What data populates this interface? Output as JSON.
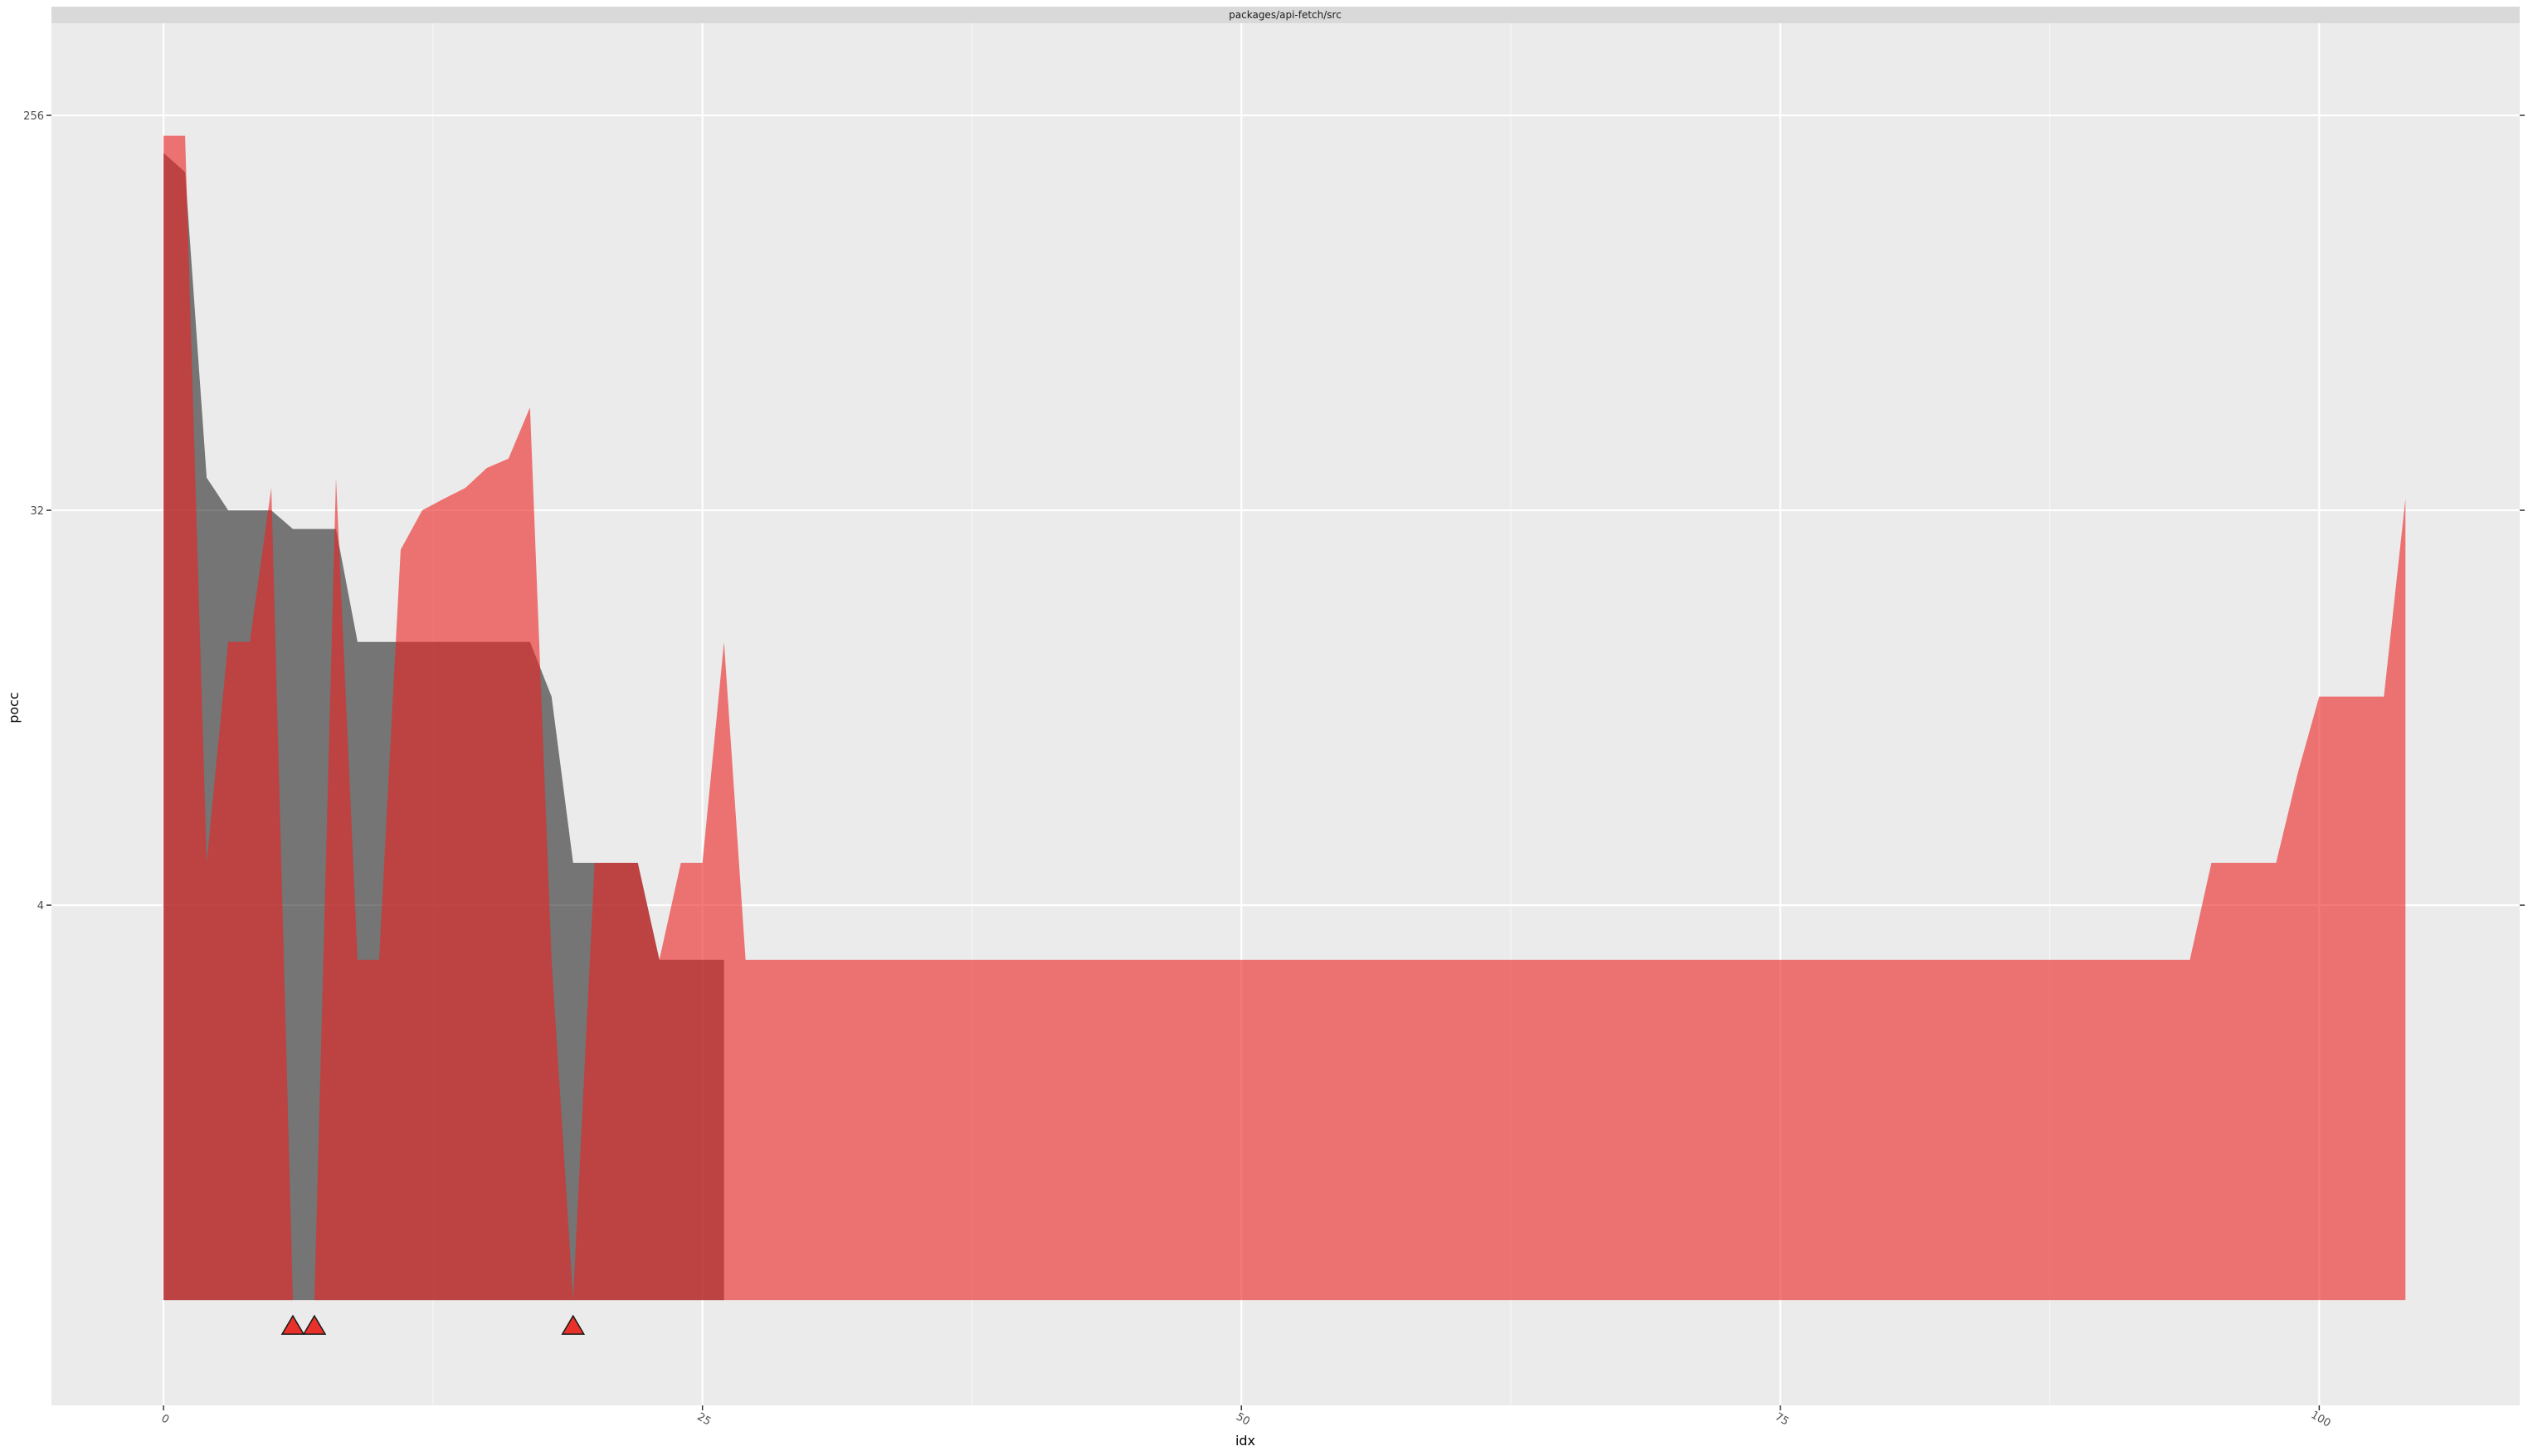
{
  "chart_data": {
    "type": "area",
    "facet_label": "packages/api-fetch/src",
    "xlabel": "idx",
    "ylabel": "pocc",
    "xlim": [
      -5.2,
      109.3
    ],
    "ylim_log2": [
      -1.8,
      8.7
    ],
    "y_scale": "log2",
    "x_ticks": [
      0,
      25,
      50,
      75,
      100
    ],
    "x_tick_labels": [
      "0",
      "25",
      "50",
      "75",
      "100"
    ],
    "y_ticks": [
      256,
      32,
      4
    ],
    "y_tick_labels": [
      "256",
      "32",
      "4"
    ],
    "baseline": 0.5,
    "grid": true,
    "legend": "none",
    "series": [
      {
        "color": "#000000",
        "opacity": 0.5,
        "x": [
          0,
          1,
          2,
          3,
          4,
          5,
          6,
          7,
          8,
          9,
          10,
          11,
          12,
          13,
          14,
          15,
          16,
          17,
          18,
          19,
          20,
          21,
          22,
          23,
          24,
          25,
          26
        ],
        "y": [
          210,
          190,
          38,
          32,
          32,
          32,
          29,
          29,
          29,
          16,
          16,
          16,
          16,
          16,
          16,
          16,
          16,
          16,
          12,
          5,
          5,
          5,
          5,
          3,
          3,
          3,
          3
        ]
      },
      {
        "color": "#ed2020",
        "opacity": 0.6,
        "x": [
          0,
          1,
          2,
          3,
          4,
          5,
          6,
          6,
          7,
          7,
          8,
          9,
          10,
          11,
          12,
          13,
          14,
          15,
          16,
          17,
          18,
          19,
          19,
          20,
          21,
          22,
          23,
          24,
          25,
          26,
          27,
          94,
          95,
          96,
          97,
          98,
          99,
          100,
          101,
          102,
          103,
          104
        ],
        "y": [
          230,
          230,
          5,
          16,
          16,
          36,
          0.5,
          0.5,
          0.5,
          0.5,
          38,
          3,
          3,
          26,
          32,
          34,
          36,
          40,
          42,
          55,
          3,
          0.5,
          0.5,
          5,
          5,
          5,
          3,
          5,
          5,
          16,
          3,
          3,
          5,
          5,
          5,
          5,
          8,
          12,
          12,
          12,
          12,
          34
        ]
      }
    ],
    "markers": {
      "shape": "triangle",
      "color": "#e8312a",
      "x": [
        6,
        7,
        19
      ],
      "y": 0.5
    }
  }
}
